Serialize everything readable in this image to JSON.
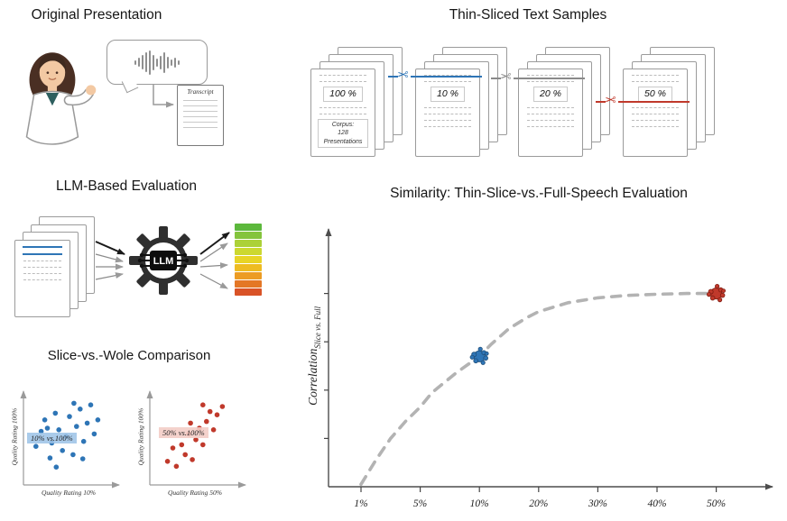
{
  "panels": {
    "original": {
      "title": "Original Presentation",
      "transcript_label": "Transcript"
    },
    "thin_sliced": {
      "title": "Thin-Sliced Text Samples",
      "stacks": [
        {
          "label": "100 %",
          "cut_color": null,
          "note": [
            "Corpus:",
            "128",
            "Presentations"
          ]
        },
        {
          "label": "10 %",
          "cut_color": "#2e75b6"
        },
        {
          "label": "20 %",
          "cut_color": "#8a8a8a"
        },
        {
          "label": "50 %",
          "cut_color": "#c0392b"
        }
      ]
    },
    "llm_eval": {
      "title": "LLM-Based Evaluation",
      "gear_label": "LLM",
      "scale_colors": [
        "#5cb83c",
        "#84c43c",
        "#acd138",
        "#ccd830",
        "#e8d426",
        "#eebc22",
        "#ec9c23",
        "#e47726",
        "#d95327"
      ]
    },
    "comparison": {
      "title": "Slice-vs.-Wole Comparison"
    },
    "similarity": {
      "title": "Similarity: Thin-Slice-vs.-Full-Speech Evaluation",
      "y_axis_label": "Correlation",
      "y_axis_label_sub": "Slice vs. Full"
    }
  },
  "chart_data": [
    {
      "type": "line",
      "title": "Similarity: Thin-Slice-vs.-Full-Speech Evaluation",
      "xlabel": "",
      "ylabel": "Correlation (Slice vs. Full)",
      "x_tick_labels": [
        "1%",
        "5%",
        "10%",
        "20%",
        "30%",
        "40%",
        "50%"
      ],
      "x_tick_values": [
        1,
        5,
        10,
        20,
        30,
        40,
        50
      ],
      "curve_style": "gray dashed",
      "curve": {
        "x": [
          1,
          1.5,
          2,
          3,
          4,
          5,
          6,
          8,
          10,
          12,
          15,
          18,
          20,
          25,
          30,
          35,
          40,
          45,
          50
        ],
        "y": [
          0.01,
          0.06,
          0.11,
          0.2,
          0.27,
          0.33,
          0.39,
          0.47,
          0.54,
          0.59,
          0.655,
          0.7,
          0.725,
          0.762,
          0.782,
          0.792,
          0.797,
          0.8,
          0.8
        ]
      },
      "points": [
        {
          "label": "10% slice",
          "x": 10,
          "y": 0.54,
          "color": "#2e75b6",
          "edge": "#1f4e79"
        },
        {
          "label": "50% slice",
          "x": 50,
          "y": 0.8,
          "color": "#c0392b",
          "edge": "#7f1d12"
        }
      ]
    },
    {
      "type": "scatter",
      "title": "10% vs.100%",
      "xlabel": "Quality Rating 10%",
      "ylabel": "Quality Rating 100%",
      "color": "#2e75b6",
      "band_color": "rgba(155,194,230,0.85)",
      "points": [
        [
          12,
          40
        ],
        [
          18,
          58
        ],
        [
          22,
          72
        ],
        [
          28,
          26
        ],
        [
          30,
          44
        ],
        [
          34,
          80
        ],
        [
          38,
          60
        ],
        [
          42,
          35
        ],
        [
          46,
          52
        ],
        [
          50,
          76
        ],
        [
          54,
          30
        ],
        [
          58,
          64
        ],
        [
          62,
          85
        ],
        [
          66,
          46
        ],
        [
          70,
          68
        ],
        [
          74,
          90
        ],
        [
          78,
          55
        ],
        [
          82,
          72
        ],
        [
          35,
          15
        ],
        [
          55,
          92
        ],
        [
          25,
          62
        ],
        [
          65,
          25
        ]
      ]
    },
    {
      "type": "scatter",
      "title": "50% vs.100%",
      "xlabel": "Quality Rating 50%",
      "ylabel": "Quality Rating 100%",
      "color": "#c0392b",
      "band_color": "rgba(243,205,199,0.9)",
      "points": [
        [
          18,
          22
        ],
        [
          24,
          38
        ],
        [
          28,
          16
        ],
        [
          34,
          42
        ],
        [
          38,
          30
        ],
        [
          42,
          55
        ],
        [
          46,
          24
        ],
        [
          50,
          48
        ],
        [
          54,
          62
        ],
        [
          58,
          42
        ],
        [
          62,
          70
        ],
        [
          66,
          82
        ],
        [
          70,
          60
        ],
        [
          74,
          78
        ],
        [
          80,
          88
        ],
        [
          58,
          90
        ],
        [
          44,
          68
        ]
      ]
    }
  ]
}
